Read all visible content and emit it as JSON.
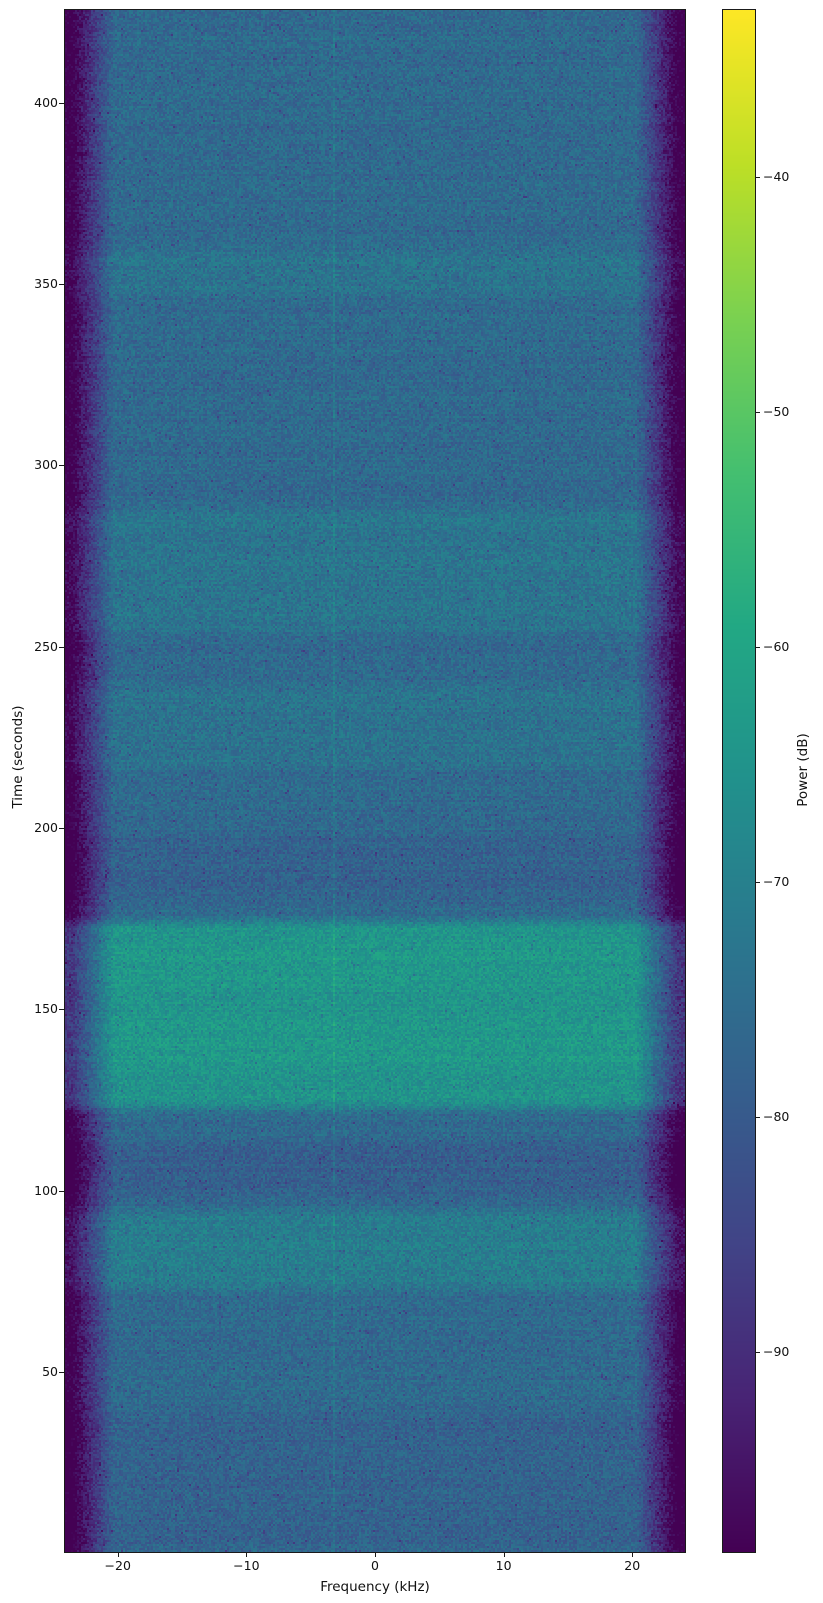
{
  "figure": {
    "xlabel": "Frequency (kHz)",
    "ylabel": "Time (seconds)",
    "colorbar_label": "Power (dB)"
  },
  "chart_data": {
    "type": "heatmap",
    "subtype": "spectrogram-waterfall",
    "colormap": "viridis",
    "xlabel": "Frequency (kHz)",
    "ylabel": "Time (seconds)",
    "colorbar_label": "Power (dB)",
    "x_range_khz": [
      -24.1,
      24.1
    ],
    "y_range_seconds": [
      0.4,
      425.6
    ],
    "value_range_db": [
      -98.5,
      -32.9
    ],
    "x_ticks": [
      -20,
      -10,
      0,
      10,
      20
    ],
    "x_tick_labels": [
      "−20",
      "−10",
      "0",
      "10",
      "20"
    ],
    "y_ticks": [
      50,
      100,
      150,
      200,
      250,
      300,
      350,
      400
    ],
    "y_tick_labels": [
      "50",
      "100",
      "150",
      "200",
      "250",
      "300",
      "350",
      "400"
    ],
    "colorbar_ticks": [
      -40,
      -50,
      -60,
      -70,
      -80,
      -90
    ],
    "colorbar_tick_labels": [
      "−40",
      "−50",
      "−60",
      "−70",
      "−80",
      "−90"
    ],
    "noise_floor_db": -76,
    "passband_edge_khz": 20.3,
    "rolloff_db_per_khz": 7.3,
    "carrier_line_khz": -3.3,
    "carrier_line_boost_db": 3.5,
    "time_bands_db": [
      {
        "start": 121,
        "end": 176,
        "delta_db": 11
      },
      {
        "start": 132,
        "end": 150,
        "delta_db": 1.5
      },
      {
        "start": 154,
        "end": 170,
        "delta_db": 1.2
      },
      {
        "start": 71,
        "end": 96,
        "delta_db": 5
      },
      {
        "start": 252,
        "end": 290,
        "delta_db": 2.8
      },
      {
        "start": 345,
        "end": 361,
        "delta_db": 2.8
      },
      {
        "start": 215,
        "end": 241,
        "delta_db": 2.2
      },
      {
        "start": 97,
        "end": 115,
        "delta_db": -2.8
      },
      {
        "start": 178,
        "end": 200,
        "delta_db": -2.0
      },
      {
        "start": 0,
        "end": 40,
        "delta_db": -1.8
      }
    ],
    "viridis_colors": [
      "#440154",
      "#482475",
      "#414487",
      "#355f8d",
      "#2a788e",
      "#21918c",
      "#22a884",
      "#44bf70",
      "#7ad151",
      "#bddf26",
      "#fde725"
    ]
  }
}
